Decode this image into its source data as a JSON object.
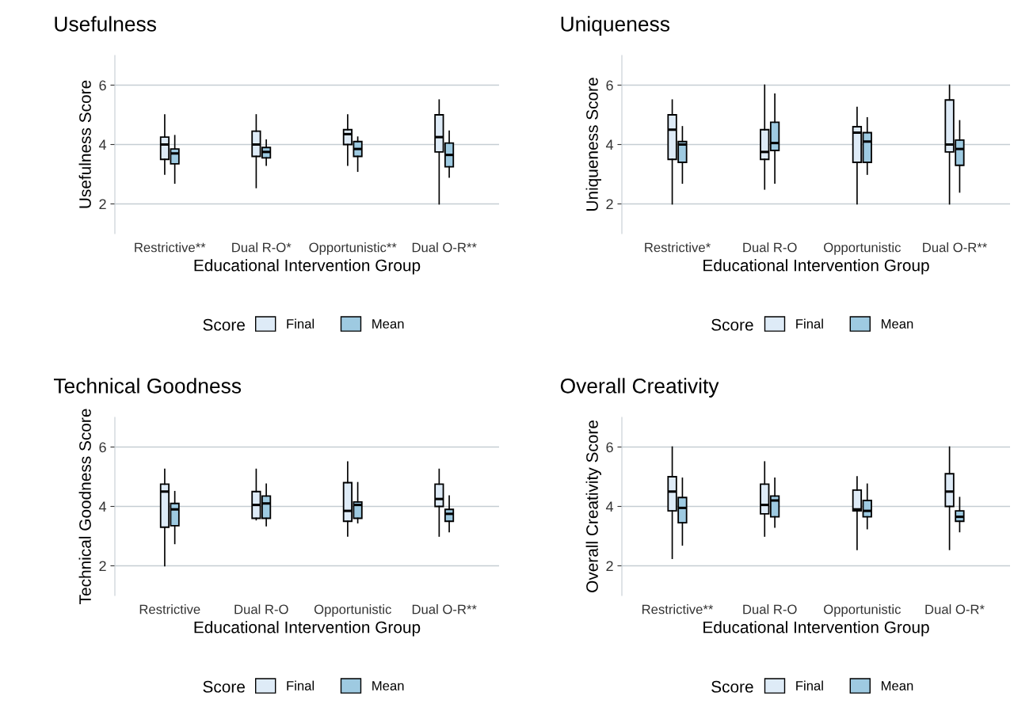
{
  "chart_data": [
    {
      "type": "box",
      "title": "Usefulness",
      "xlabel": "Educational Intervention Group",
      "ylabel": "Usefulness Score",
      "legend_title": "Score",
      "legend": "bottom",
      "grid": "y",
      "ylim": [
        1,
        7
      ],
      "yticks": [
        2,
        4,
        6
      ],
      "categories": [
        "Restrictive**",
        "Dual R-O*",
        "Opportunistic**",
        "Dual O-R**"
      ],
      "series": [
        {
          "name": "Final",
          "color": "#deebf7",
          "boxes": [
            {
              "low": 3.0,
              "q1": 3.5,
              "median": 4.0,
              "q3": 4.25,
              "high": 5.0
            },
            {
              "low": 2.55,
              "q1": 3.6,
              "median": 4.0,
              "q3": 4.45,
              "high": 5.0
            },
            {
              "low": 3.3,
              "q1": 4.0,
              "median": 4.35,
              "q3": 4.5,
              "high": 5.0
            },
            {
              "low": 2.0,
              "q1": 3.75,
              "median": 4.25,
              "q3": 5.0,
              "high": 5.5
            }
          ]
        },
        {
          "name": "Mean",
          "color": "#9ecae1",
          "boxes": [
            {
              "low": 2.7,
              "q1": 3.35,
              "median": 3.7,
              "q3": 3.85,
              "high": 4.3
            },
            {
              "low": 3.3,
              "q1": 3.55,
              "median": 3.75,
              "q3": 3.9,
              "high": 4.15
            },
            {
              "low": 3.1,
              "q1": 3.6,
              "median": 3.85,
              "q3": 4.1,
              "high": 4.25
            },
            {
              "low": 2.9,
              "q1": 3.25,
              "median": 3.65,
              "q3": 4.05,
              "high": 4.45
            }
          ]
        }
      ]
    },
    {
      "type": "box",
      "title": "Uniqueness",
      "xlabel": "Educational Intervention Group",
      "ylabel": "Uniqueness Score",
      "legend_title": "Score",
      "legend": "bottom",
      "grid": "y",
      "ylim": [
        1,
        7
      ],
      "yticks": [
        2,
        4,
        6
      ],
      "categories": [
        "Restrictive*",
        "Dual R-O",
        "Opportunistic",
        "Dual O-R**"
      ],
      "series": [
        {
          "name": "Final",
          "color": "#deebf7",
          "boxes": [
            {
              "low": 2.0,
              "q1": 3.5,
              "median": 4.5,
              "q3": 5.0,
              "high": 5.5
            },
            {
              "low": 2.5,
              "q1": 3.5,
              "median": 3.75,
              "q3": 4.5,
              "high": 6.0
            },
            {
              "low": 2.0,
              "q1": 3.4,
              "median": 4.4,
              "q3": 4.6,
              "high": 5.25
            },
            {
              "low": 2.0,
              "q1": 3.75,
              "median": 4.0,
              "q3": 5.5,
              "high": 6.0
            }
          ]
        },
        {
          "name": "Mean",
          "color": "#9ecae1",
          "boxes": [
            {
              "low": 2.7,
              "q1": 3.4,
              "median": 4.0,
              "q3": 4.1,
              "high": 4.6
            },
            {
              "low": 2.7,
              "q1": 3.8,
              "median": 4.05,
              "q3": 4.75,
              "high": 5.7
            },
            {
              "low": 3.0,
              "q1": 3.4,
              "median": 4.1,
              "q3": 4.4,
              "high": 4.9
            },
            {
              "low": 2.4,
              "q1": 3.3,
              "median": 3.85,
              "q3": 4.15,
              "high": 4.8
            }
          ]
        }
      ]
    },
    {
      "type": "box",
      "title": "Technical Goodness",
      "xlabel": "Educational Intervention Group",
      "ylabel": "Technical Goodness Score",
      "legend_title": "Score",
      "legend": "bottom",
      "grid": "y",
      "ylim": [
        1,
        7
      ],
      "yticks": [
        2,
        4,
        6
      ],
      "categories": [
        "Restrictive",
        "Dual R-O",
        "Opportunistic",
        "Dual O-R**"
      ],
      "series": [
        {
          "name": "Final",
          "color": "#deebf7",
          "boxes": [
            {
              "low": 2.0,
              "q1": 3.3,
              "median": 4.5,
              "q3": 4.75,
              "high": 5.25
            },
            {
              "low": 3.55,
              "q1": 3.6,
              "median": 4.05,
              "q3": 4.5,
              "high": 5.25
            },
            {
              "low": 3.0,
              "q1": 3.5,
              "median": 3.85,
              "q3": 4.8,
              "high": 5.5
            },
            {
              "low": 3.0,
              "q1": 4.0,
              "median": 4.25,
              "q3": 4.75,
              "high": 5.25
            }
          ]
        },
        {
          "name": "Mean",
          "color": "#9ecae1",
          "boxes": [
            {
              "low": 2.75,
              "q1": 3.35,
              "median": 3.9,
              "q3": 4.1,
              "high": 4.5
            },
            {
              "low": 3.35,
              "q1": 3.6,
              "median": 4.1,
              "q3": 4.35,
              "high": 4.75
            },
            {
              "low": 3.45,
              "q1": 3.6,
              "median": 4.05,
              "q3": 4.15,
              "high": 4.8
            },
            {
              "low": 3.15,
              "q1": 3.5,
              "median": 3.75,
              "q3": 3.9,
              "high": 4.35
            }
          ]
        }
      ]
    },
    {
      "type": "box",
      "title": "Overall Creativity",
      "xlabel": "Educational Intervention Group",
      "ylabel": "Overall Creativity Score",
      "legend_title": "Score",
      "legend": "bottom",
      "grid": "y",
      "ylim": [
        1,
        7
      ],
      "yticks": [
        2,
        4,
        6
      ],
      "categories": [
        "Restrictive**",
        "Dual R-O",
        "Opportunistic",
        "Dual O-R*"
      ],
      "series": [
        {
          "name": "Final",
          "color": "#deebf7",
          "boxes": [
            {
              "low": 2.25,
              "q1": 3.85,
              "median": 4.5,
              "q3": 5.0,
              "high": 6.0
            },
            {
              "low": 3.0,
              "q1": 3.75,
              "median": 4.05,
              "q3": 4.75,
              "high": 5.5
            },
            {
              "low": 2.55,
              "q1": 3.85,
              "median": 3.9,
              "q3": 4.55,
              "high": 5.0
            },
            {
              "low": 2.55,
              "q1": 4.0,
              "median": 4.5,
              "q3": 5.1,
              "high": 6.0
            }
          ]
        },
        {
          "name": "Mean",
          "color": "#9ecae1",
          "boxes": [
            {
              "low": 2.7,
              "q1": 3.45,
              "median": 3.95,
              "q3": 4.3,
              "high": 4.95
            },
            {
              "low": 3.3,
              "q1": 3.65,
              "median": 4.2,
              "q3": 4.35,
              "high": 4.95
            },
            {
              "low": 3.25,
              "q1": 3.65,
              "median": 3.85,
              "q3": 4.2,
              "high": 4.75
            },
            {
              "low": 3.15,
              "q1": 3.5,
              "median": 3.65,
              "q3": 3.85,
              "high": 4.3
            }
          ]
        }
      ]
    }
  ]
}
